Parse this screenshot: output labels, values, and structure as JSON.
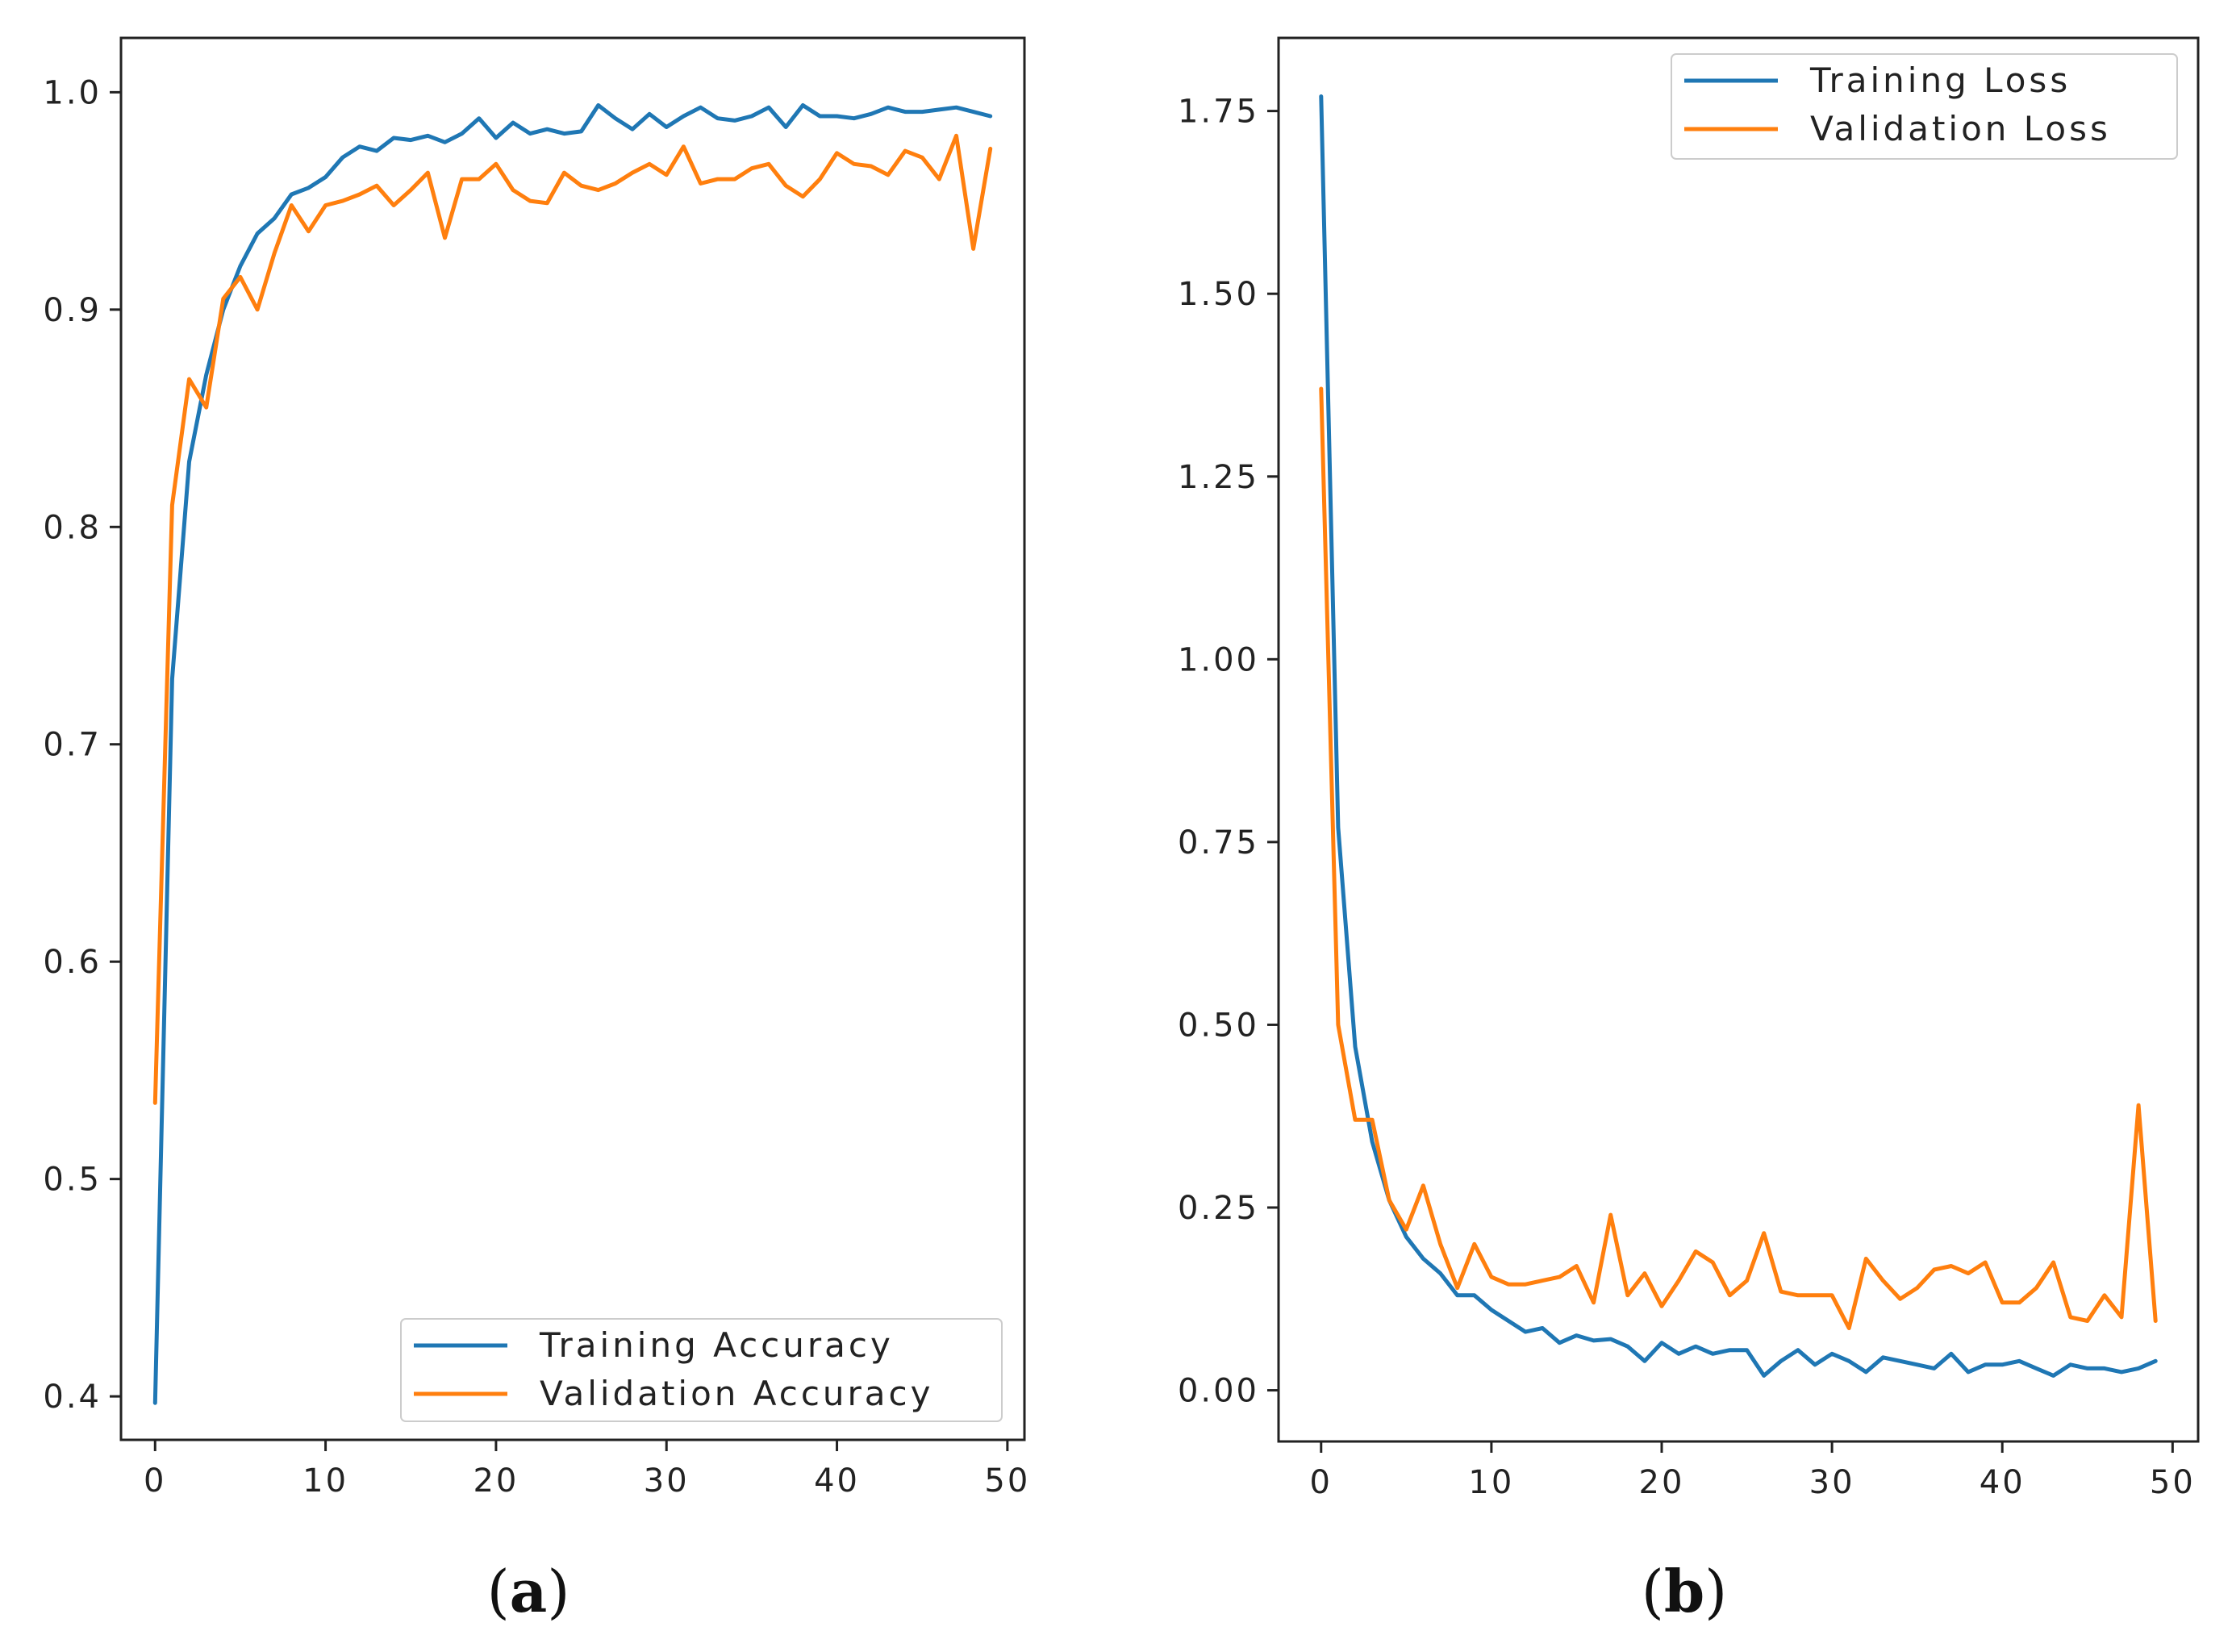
{
  "colors": {
    "training": "#1f77b4",
    "validation": "#ff7f0e"
  },
  "chart_data": [
    {
      "type": "line",
      "caption": "a",
      "xlim": [
        -2,
        51
      ],
      "ylim": [
        0.38,
        1.025
      ],
      "xticks": [
        "0",
        "10",
        "20",
        "30",
        "40",
        "50"
      ],
      "xtick_values": [
        0,
        10,
        20,
        30,
        40,
        50
      ],
      "yticks": [
        "0.4",
        "0.5",
        "0.6",
        "0.7",
        "0.8",
        "0.9",
        "1.0"
      ],
      "ytick_values": [
        0.4,
        0.5,
        0.6,
        0.7,
        0.8,
        0.9,
        1.0
      ],
      "legend_position": "lower-right",
      "series": [
        {
          "name": "Training Accuracy",
          "color_key": "training",
          "values": [
            0.397,
            0.73,
            0.83,
            0.87,
            0.9,
            0.92,
            0.935,
            0.942,
            0.953,
            0.956,
            0.961,
            0.97,
            0.975,
            0.973,
            0.979,
            0.978,
            0.98,
            0.977,
            0.981,
            0.988,
            0.979,
            0.986,
            0.981,
            0.983,
            0.981,
            0.982,
            0.994,
            0.988,
            0.983,
            0.99,
            0.984,
            0.989,
            0.993,
            0.988,
            0.987,
            0.989,
            0.993,
            0.984,
            0.994,
            0.989,
            0.989,
            0.988,
            0.99,
            0.993,
            0.991,
            0.991,
            0.992,
            0.993,
            0.991,
            0.989
          ]
        },
        {
          "name": "Validation Accuracy",
          "color_key": "validation",
          "values": [
            0.535,
            0.81,
            0.868,
            0.855,
            0.905,
            0.915,
            0.9,
            0.926,
            0.948,
            0.936,
            0.948,
            0.95,
            0.953,
            0.957,
            0.948,
            0.955,
            0.963,
            0.933,
            0.96,
            0.96,
            0.967,
            0.955,
            0.95,
            0.949,
            0.963,
            0.957,
            0.955,
            0.958,
            0.963,
            0.967,
            0.962,
            0.975,
            0.958,
            0.96,
            0.96,
            0.965,
            0.967,
            0.957,
            0.952,
            0.96,
            0.972,
            0.967,
            0.966,
            0.962,
            0.973,
            0.97,
            0.96,
            0.98,
            0.928,
            0.974
          ]
        }
      ]
    },
    {
      "type": "line",
      "caption": "b",
      "xlim": [
        -2.5,
        51.5
      ],
      "ylim": [
        -0.07,
        1.85
      ],
      "xticks": [
        "0",
        "10",
        "20",
        "30",
        "40",
        "50"
      ],
      "xtick_values": [
        0,
        10,
        20,
        30,
        40,
        50
      ],
      "yticks": [
        "0.00",
        "0.25",
        "0.50",
        "0.75",
        "1.00",
        "1.25",
        "1.50",
        "1.75"
      ],
      "ytick_values": [
        0,
        0.25,
        0.5,
        0.75,
        1.0,
        1.25,
        1.5,
        1.75
      ],
      "legend_position": "upper-right",
      "series": [
        {
          "name": "Training Loss",
          "color_key": "training",
          "values": [
            1.77,
            0.77,
            0.47,
            0.34,
            0.26,
            0.21,
            0.18,
            0.16,
            0.13,
            0.13,
            0.11,
            0.095,
            0.08,
            0.085,
            0.065,
            0.075,
            0.068,
            0.07,
            0.06,
            0.04,
            0.065,
            0.05,
            0.06,
            0.05,
            0.055,
            0.055,
            0.02,
            0.04,
            0.055,
            0.035,
            0.05,
            0.04,
            0.025,
            0.045,
            0.04,
            0.035,
            0.03,
            0.05,
            0.025,
            0.035,
            0.035,
            0.04,
            0.03,
            0.02,
            0.035,
            0.03,
            0.03,
            0.025,
            0.03,
            0.04
          ]
        },
        {
          "name": "Validation Loss",
          "color_key": "validation",
          "values": [
            1.37,
            0.5,
            0.37,
            0.37,
            0.26,
            0.22,
            0.28,
            0.2,
            0.14,
            0.2,
            0.155,
            0.145,
            0.145,
            0.15,
            0.155,
            0.17,
            0.12,
            0.24,
            0.13,
            0.16,
            0.115,
            0.15,
            0.19,
            0.175,
            0.13,
            0.15,
            0.215,
            0.135,
            0.13,
            0.13,
            0.13,
            0.085,
            0.18,
            0.15,
            0.125,
            0.14,
            0.165,
            0.17,
            0.16,
            0.175,
            0.12,
            0.12,
            0.14,
            0.175,
            0.1,
            0.095,
            0.13,
            0.1,
            0.39,
            0.095
          ]
        }
      ]
    }
  ]
}
